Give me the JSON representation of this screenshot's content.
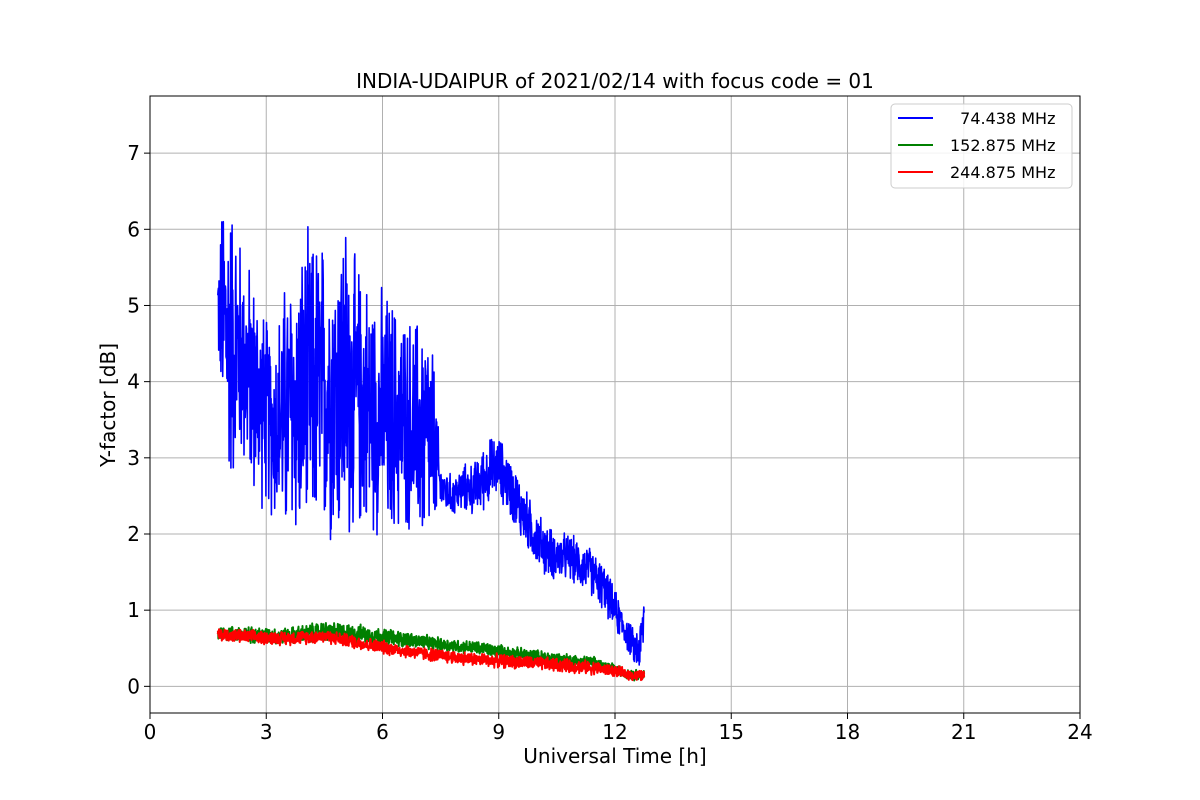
{
  "chart_data": {
    "type": "line",
    "title": "INDIA-UDAIPUR of 2021/02/14 with focus code = 01",
    "xlabel": "Universal Time [h]",
    "ylabel": "Y-factor [dB]",
    "xlim": [
      0,
      24
    ],
    "ylim": [
      -0.35,
      7.75
    ],
    "xticks": [
      0,
      3,
      6,
      9,
      12,
      15,
      18,
      21,
      24
    ],
    "yticks": [
      0,
      1,
      2,
      3,
      4,
      5,
      6,
      7
    ],
    "grid": true,
    "legend_position": "top-right",
    "series": [
      {
        "name": "  74.438 MHz",
        "color": "#0000ff",
        "x": [
          1.75,
          1.9,
          2.0,
          2.2,
          2.4,
          2.6,
          2.8,
          3.0,
          3.2,
          3.5,
          3.8,
          4.0,
          4.3,
          4.6,
          4.9,
          5.0,
          5.3,
          5.6,
          5.9,
          6.2,
          6.5,
          6.8,
          7.1,
          7.3,
          7.5,
          7.8,
          8.1,
          8.4,
          8.7,
          9.0,
          9.3,
          9.6,
          9.9,
          10.2,
          10.5,
          10.8,
          11.1,
          11.4,
          11.7,
          12.0,
          12.3,
          12.5,
          12.65,
          12.75
        ],
        "y": [
          5.0,
          4.8,
          4.6,
          4.5,
          4.3,
          4.0,
          3.8,
          3.6,
          3.4,
          3.6,
          3.7,
          3.8,
          3.9,
          3.9,
          3.9,
          4.0,
          3.8,
          3.7,
          3.6,
          3.5,
          3.5,
          3.4,
          3.3,
          3.2,
          2.6,
          2.5,
          2.6,
          2.6,
          2.8,
          2.9,
          2.6,
          2.3,
          2.0,
          1.8,
          1.7,
          1.7,
          1.6,
          1.5,
          1.3,
          1.0,
          0.7,
          0.5,
          0.5,
          0.9
        ],
        "amplitude": [
          0.7,
          2.0,
          2.3,
          2.0,
          1.6,
          1.7,
          1.6,
          1.4,
          1.4,
          2.0,
          2.1,
          2.3,
          2.3,
          2.2,
          2.3,
          2.6,
          2.0,
          1.9,
          1.8,
          1.9,
          1.6,
          1.6,
          1.8,
          1.5,
          0.35,
          0.3,
          0.35,
          0.4,
          0.5,
          0.45,
          0.45,
          0.45,
          0.4,
          0.4,
          0.35,
          0.35,
          0.35,
          0.35,
          0.35,
          0.3,
          0.25,
          0.25,
          0.4,
          0.5
        ]
      },
      {
        "name": "152.875 MHz",
        "color": "#008000",
        "x": [
          1.75,
          2.5,
          3.5,
          4.5,
          5.5,
          6.5,
          7.5,
          8.5,
          9.5,
          10.5,
          11.5,
          12.0,
          12.5,
          12.75
        ],
        "y": [
          0.7,
          0.68,
          0.66,
          0.72,
          0.68,
          0.62,
          0.55,
          0.5,
          0.42,
          0.36,
          0.3,
          0.22,
          0.15,
          0.15
        ],
        "amplitude": [
          0.12,
          0.12,
          0.12,
          0.15,
          0.14,
          0.12,
          0.1,
          0.1,
          0.1,
          0.1,
          0.1,
          0.08,
          0.08,
          0.08
        ]
      },
      {
        "name": "244.875 MHz",
        "color": "#ff0000",
        "x": [
          1.75,
          2.5,
          3.5,
          4.5,
          5.5,
          6.5,
          7.5,
          8.5,
          9.5,
          10.5,
          11.5,
          12.0,
          12.5,
          12.75
        ],
        "y": [
          0.68,
          0.65,
          0.63,
          0.66,
          0.56,
          0.47,
          0.4,
          0.35,
          0.32,
          0.28,
          0.24,
          0.2,
          0.14,
          0.14
        ],
        "amplitude": [
          0.1,
          0.1,
          0.1,
          0.1,
          0.1,
          0.1,
          0.1,
          0.1,
          0.1,
          0.1,
          0.1,
          0.08,
          0.08,
          0.08
        ]
      }
    ]
  }
}
